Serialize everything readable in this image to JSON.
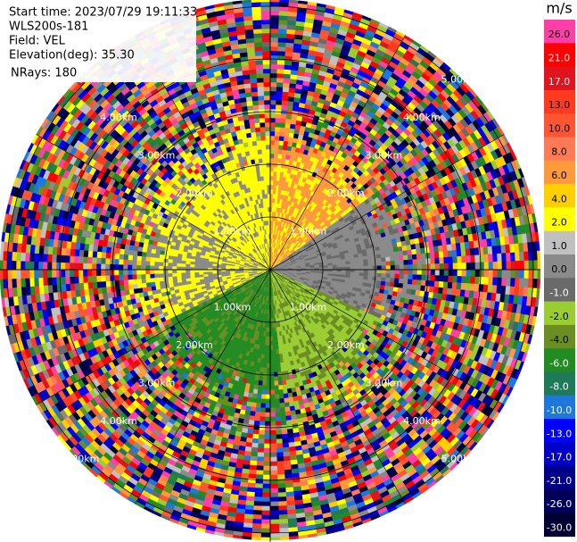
{
  "info": {
    "lines": [
      "Start time: 2023/07/29 19:11:33",
      "WLS200s-181",
      "Field: VEL",
      "Elevation(deg): 35.30",
      "NRays: 180"
    ]
  },
  "rings": {
    "labels": [
      "1.00km",
      "2.00km",
      "3.00km",
      "4.00km",
      "5.00km"
    ]
  },
  "colorbar": {
    "unit": "m/s",
    "labels": [
      "26.0",
      "21.0",
      "17.0",
      "13.0",
      "10.0",
      "8.0",
      "6.0",
      "4.0",
      "2.0",
      "1.0",
      "0.0",
      "-1.0",
      "-2.0",
      "-4.0",
      "-6.0",
      "-8.0",
      "-10.0",
      "-13.0",
      "-17.0",
      "-21.0",
      "-26.0",
      "-30.0"
    ],
    "colors": [
      "#ff3fa8",
      "#ff0000",
      "#e0141e",
      "#ff3a1e",
      "#ff5533",
      "#ff7a55",
      "#ff9a3c",
      "#ffd000",
      "#ffff00",
      "#c0c0c0",
      "#8a8a8a",
      "#6a6a6a",
      "#9acd32",
      "#6b8e23",
      "#228b22",
      "#1f7a5a",
      "#1e78dc",
      "#0000ff",
      "#0000c8",
      "#000088",
      "#00005a",
      "#000033"
    ]
  }
}
